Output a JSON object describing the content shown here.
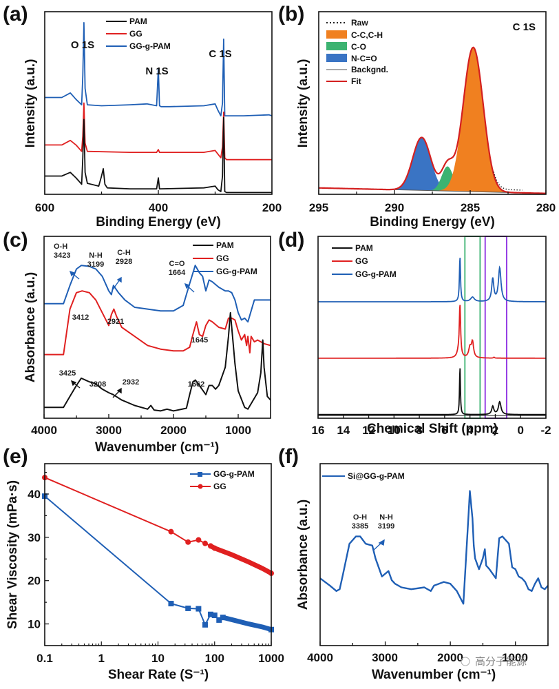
{
  "figure": {
    "watermark": "高分子能源",
    "colors": {
      "PAM": "#111111",
      "GG": "#e02020",
      "GG-g-PAM": "#1f5fb5",
      "C-C,C-H": "#f08020",
      "C-O": "#3cb371",
      "N-C=O": "#3a74c4",
      "Backgnd.": "#555555",
      "Fit": "#d42020",
      "Raw": "#222222",
      "box_green": "#3cb371",
      "box_purple": "#8a2be2"
    }
  },
  "chart_data": [
    {
      "id": "a",
      "panel_label": "(a)",
      "type": "line",
      "title": "",
      "xlabel": "Binding Energy (eV)",
      "ylabel": "Intensity (a.u.)",
      "xlim": [
        600,
        200
      ],
      "ylim": [
        0,
        10
      ],
      "xticks": [
        600,
        400,
        200
      ],
      "xtick_labels": [
        "600",
        "400",
        "200"
      ],
      "legend": [
        "PAM",
        "GG",
        "GG-g-PAM"
      ],
      "legend_position": "top-center",
      "annotations": [
        {
          "text": "O 1S",
          "x": 531
        },
        {
          "text": "N 1S",
          "x": 399
        },
        {
          "text": "C 1S",
          "x": 285
        }
      ],
      "series": [
        {
          "name": "GG-g-PAM",
          "x": [
            600,
            570,
            555,
            545,
            535,
            533,
            531,
            529,
            525,
            500,
            450,
            420,
            403,
            400,
            398,
            395,
            380,
            320,
            300,
            295,
            290,
            287,
            285,
            283,
            280,
            250,
            205,
            200
          ],
          "y": [
            5.3,
            5.3,
            5.55,
            5.2,
            4.9,
            6.5,
            9.4,
            5.8,
            4.9,
            4.85,
            4.9,
            4.95,
            4.85,
            6.9,
            4.85,
            4.8,
            4.8,
            4.85,
            4.95,
            4.6,
            4.3,
            5.0,
            8.5,
            4.3,
            4.3,
            4.3,
            4.35,
            4.3
          ]
        },
        {
          "name": "GG",
          "x": [
            600,
            570,
            555,
            545,
            535,
            533,
            531,
            529,
            525,
            450,
            403,
            400,
            398,
            320,
            300,
            295,
            290,
            287,
            285,
            283,
            280,
            200
          ],
          "y": [
            2.7,
            2.7,
            2.95,
            2.7,
            2.35,
            3.2,
            5.0,
            2.8,
            2.35,
            2.3,
            2.3,
            2.45,
            2.3,
            2.3,
            2.4,
            2.2,
            2.0,
            2.6,
            4.5,
            2.0,
            1.9,
            1.9
          ]
        },
        {
          "name": "PAM",
          "x": [
            600,
            570,
            555,
            545,
            535,
            533,
            531,
            529,
            525,
            505,
            500,
            497,
            494,
            490,
            450,
            403,
            400,
            398,
            320,
            300,
            295,
            290,
            287,
            285,
            283,
            280,
            200
          ],
          "y": [
            1.0,
            1.0,
            1.2,
            0.9,
            0.55,
            2.0,
            4.1,
            1.2,
            0.6,
            0.45,
            1.0,
            1.4,
            0.55,
            0.35,
            0.3,
            0.3,
            0.9,
            0.3,
            0.35,
            0.45,
            0.25,
            0.15,
            1.0,
            4.2,
            0.15,
            0.1,
            0.1
          ]
        }
      ]
    },
    {
      "id": "b",
      "panel_label": "(b)",
      "type": "area",
      "title": "C 1S",
      "xlabel": "Binding Energy (eV)",
      "ylabel": "Intensity (a.u.)",
      "xlim": [
        295,
        280
      ],
      "ylim": [
        0,
        10
      ],
      "xticks": [
        295,
        290,
        285,
        280
      ],
      "xtick_labels": [
        "295",
        "290",
        "285",
        "280"
      ],
      "legend": [
        "Raw",
        "C-C,C-H",
        "C-O",
        "N-C=O",
        "Backgnd.",
        "Fit"
      ],
      "legend_position": "top-left",
      "components": [
        {
          "name": "N-C=O",
          "center": 288.2,
          "height": 2.9,
          "fwhm": 1.4
        },
        {
          "name": "C-O",
          "center": 286.5,
          "height": 1.35,
          "fwhm": 0.9
        },
        {
          "name": "C-C,C-H",
          "center": 284.8,
          "height": 7.9,
          "fwhm": 1.55
        }
      ],
      "background": {
        "start": 0.35,
        "end": 0.05
      }
    },
    {
      "id": "c",
      "panel_label": "(c)",
      "type": "line",
      "title": "",
      "xlabel": "Wavenumber (cm⁻¹)",
      "ylabel": "Absorbance (a.u.)",
      "xlim": [
        4000,
        500
      ],
      "ylim": [
        0,
        10
      ],
      "xticks": [
        4000,
        3000,
        2000,
        1000
      ],
      "xtick_labels": [
        "4000",
        "3000",
        "2000",
        "1000"
      ],
      "legend": [
        "PAM",
        "GG",
        "GG-g-PAM"
      ],
      "legend_position": "top-right",
      "annotations": [
        {
          "series": "GG-g-PAM",
          "lines": [
            "O-H",
            "3423"
          ]
        },
        {
          "series": "GG-g-PAM",
          "lines": [
            "N-H",
            "3199"
          ]
        },
        {
          "series": "GG-g-PAM",
          "lines": [
            "C-H",
            "2928"
          ]
        },
        {
          "series": "GG-g-PAM",
          "lines": [
            "C=O",
            "1664"
          ]
        },
        {
          "series": "GG",
          "lines": [
            "3412"
          ]
        },
        {
          "series": "GG",
          "lines": [
            "2921"
          ]
        },
        {
          "series": "GG",
          "lines": [
            "1645"
          ]
        },
        {
          "series": "PAM",
          "lines": [
            "3425"
          ]
        },
        {
          "series": "PAM",
          "lines": [
            "3208"
          ]
        },
        {
          "series": "PAM",
          "lines": [
            "2932"
          ]
        },
        {
          "series": "PAM",
          "lines": [
            "1662"
          ]
        }
      ],
      "series": [
        {
          "name": "GG-g-PAM",
          "x": [
            4000,
            3700,
            3600,
            3500,
            3423,
            3300,
            3199,
            3100,
            3000,
            2960,
            2928,
            2850,
            2750,
            2600,
            2400,
            2200,
            2000,
            1850,
            1750,
            1664,
            1600,
            1550,
            1500,
            1450,
            1400,
            1300,
            1200,
            1150,
            1100,
            1050,
            1000,
            950,
            900,
            850,
            800,
            750,
            700,
            600,
            500
          ],
          "y": [
            6.3,
            6.3,
            7.3,
            8.2,
            8.4,
            8.35,
            8.2,
            7.8,
            7.0,
            6.8,
            7.3,
            6.9,
            6.5,
            6.1,
            6.0,
            5.9,
            5.9,
            6.2,
            7.4,
            8.4,
            8.0,
            7.8,
            7.0,
            7.6,
            7.5,
            7.2,
            7.0,
            7.0,
            6.9,
            6.5,
            5.8,
            5.4,
            5.5,
            5.3,
            5.9,
            6.5,
            6.5,
            6.5,
            6.5
          ]
        },
        {
          "name": "GG",
          "x": [
            4000,
            3700,
            3600,
            3500,
            3412,
            3300,
            3200,
            3100,
            3000,
            2960,
            2921,
            2880,
            2800,
            2600,
            2400,
            2200,
            2000,
            1850,
            1750,
            1700,
            1645,
            1600,
            1550,
            1500,
            1450,
            1400,
            1300,
            1200,
            1150,
            1100,
            1050,
            1000,
            950,
            900,
            870,
            850,
            820,
            800,
            750,
            700,
            600,
            500
          ],
          "y": [
            3.5,
            3.5,
            6.0,
            6.9,
            7.0,
            6.9,
            6.5,
            5.8,
            5.1,
            5.7,
            6.0,
            5.6,
            5.0,
            4.5,
            4.0,
            3.8,
            3.7,
            3.7,
            3.9,
            4.6,
            5.3,
            4.6,
            4.5,
            5.1,
            5.4,
            5.3,
            5.0,
            4.9,
            5.5,
            5.5,
            5.4,
            4.8,
            4.3,
            4.6,
            4.0,
            4.5,
            3.6,
            4.5,
            4.2,
            4.3,
            4.1,
            4.0
          ]
        },
        {
          "name": "PAM",
          "x": [
            4000,
            3700,
            3600,
            3500,
            3425,
            3300,
            3208,
            3100,
            3000,
            2932,
            2800,
            2600,
            2400,
            2350,
            2300,
            2200,
            2100,
            2000,
            1800,
            1750,
            1700,
            1662,
            1600,
            1500,
            1450,
            1400,
            1350,
            1300,
            1200,
            1150,
            1120,
            1100,
            1050,
            1000,
            900,
            850,
            800,
            700,
            650,
            620,
            600,
            550,
            500
          ],
          "y": [
            0.6,
            0.6,
            1.2,
            1.8,
            2.2,
            2.0,
            1.9,
            1.6,
            1.4,
            1.3,
            1.0,
            0.7,
            0.5,
            0.7,
            0.45,
            0.4,
            0.5,
            0.4,
            0.55,
            1.3,
            2.0,
            2.1,
            1.8,
            1.3,
            1.8,
            1.8,
            1.6,
            1.8,
            2.8,
            4.5,
            5.8,
            5.0,
            3.0,
            1.5,
            0.6,
            0.5,
            0.8,
            1.4,
            2.5,
            4.3,
            2.8,
            1.2,
            1.0
          ]
        }
      ]
    },
    {
      "id": "d",
      "panel_label": "(d)",
      "type": "line",
      "title": "",
      "xlabel": "Chemical Shift (ppm)",
      "ylabel": "",
      "xlim": [
        16,
        -2
      ],
      "ylim": [
        0,
        10
      ],
      "xticks": [
        16,
        14,
        12,
        10,
        8,
        6,
        4,
        2,
        0,
        -2
      ],
      "xtick_labels": [
        "16",
        "14",
        "12",
        "10",
        "8",
        "6",
        "4",
        "2",
        "0",
        "-2"
      ],
      "legend": [
        "PAM",
        "GG",
        "GG-g-PAM"
      ],
      "legend_position": "top-left",
      "highlight_boxes": [
        {
          "color": "box_green",
          "x_range": [
            4.4,
            3.2
          ]
        },
        {
          "color": "box_purple",
          "x_range": [
            2.8,
            1.1
          ]
        }
      ],
      "series": [
        {
          "name": "GG-g-PAM",
          "baseline": 6.4,
          "peaks": [
            {
              "x": 4.79,
              "h": 2.5,
              "w": 0.05
            },
            {
              "x": 3.8,
              "h": 0.25,
              "w": 0.18
            },
            {
              "x": 2.2,
              "h": 1.25,
              "w": 0.1
            },
            {
              "x": 1.65,
              "h": 1.85,
              "w": 0.12
            }
          ]
        },
        {
          "name": "GG",
          "baseline": 3.3,
          "peaks": [
            {
              "x": 4.79,
              "h": 2.8,
              "w": 0.06
            },
            {
              "x": 4.9,
              "h": 0.3,
              "w": 0.15
            },
            {
              "x": 4.0,
              "h": 0.55,
              "w": 0.12
            },
            {
              "x": 3.8,
              "h": 0.85,
              "w": 0.1
            },
            {
              "x": 2.1,
              "h": 0.05,
              "w": 0.05
            }
          ]
        },
        {
          "name": "PAM",
          "baseline": 0.2,
          "peaks": [
            {
              "x": 4.79,
              "h": 2.7,
              "w": 0.04
            },
            {
              "x": 2.2,
              "h": 0.45,
              "w": 0.1
            },
            {
              "x": 1.65,
              "h": 0.7,
              "w": 0.12
            }
          ]
        }
      ]
    },
    {
      "id": "e",
      "panel_label": "(e)",
      "type": "line",
      "title": "",
      "xlabel": "Shear Rate (S⁻¹)",
      "ylabel": "Shear Viscosity (mPa·s)",
      "xscale": "log",
      "xlim": [
        0.1,
        1000
      ],
      "ylim": [
        5,
        47
      ],
      "xticks": [
        0.1,
        1,
        10,
        100,
        1000
      ],
      "xtick_labels": [
        "0.1",
        "1",
        "10",
        "100",
        "1000"
      ],
      "yticks": [
        10,
        20,
        30,
        40
      ],
      "ytick_labels": [
        "10",
        "20",
        "30",
        "40"
      ],
      "legend": [
        "GG-g-PAM",
        "GG"
      ],
      "legend_position": "top-right",
      "series": [
        {
          "name": "GG-g-PAM",
          "x": [
            0.1,
            17,
            34,
            52,
            68,
            85,
            100,
            120,
            140,
            200,
            400,
            700,
            1000
          ],
          "y": [
            39.5,
            14.7,
            13.6,
            13.5,
            9.8,
            12.2,
            12.0,
            10.9,
            11.5,
            11.0,
            10.0,
            9.3,
            8.7
          ]
        },
        {
          "name": "GG",
          "x": [
            0.1,
            17,
            34,
            52,
            68,
            85,
            100,
            200,
            400,
            700,
            1000
          ],
          "y": [
            43.8,
            31.3,
            28.9,
            29.4,
            28.6,
            28.0,
            27.5,
            26.0,
            24.3,
            22.8,
            21.7
          ]
        }
      ]
    },
    {
      "id": "f",
      "panel_label": "(f)",
      "type": "line",
      "title": "",
      "xlabel": "Wavenumber (cm⁻¹)",
      "ylabel": "Absorbance (a.u.)",
      "xlim": [
        4000,
        500
      ],
      "ylim": [
        0,
        10
      ],
      "xticks": [
        4000,
        3000,
        2000,
        1000
      ],
      "xtick_labels": [
        "4000",
        "3000",
        "2000",
        "1000"
      ],
      "legend": [
        "Si@GG-g-PAM"
      ],
      "legend_position": "top-left",
      "annotations": [
        {
          "lines": [
            "O-H",
            "3385"
          ]
        },
        {
          "lines": [
            "N-H",
            "3199"
          ]
        }
      ],
      "series": [
        {
          "name": "Si@GG-g-PAM",
          "x": [
            4000,
            3850,
            3750,
            3700,
            3650,
            3550,
            3450,
            3385,
            3300,
            3199,
            3150,
            3050,
            2950,
            2900,
            2850,
            2750,
            2600,
            2400,
            2300,
            2250,
            2100,
            2000,
            1900,
            1800,
            1720,
            1700,
            1660,
            1640,
            1620,
            1560,
            1500,
            1470,
            1450,
            1400,
            1300,
            1250,
            1200,
            1100,
            1050,
            1000,
            950,
            900,
            850,
            800,
            750,
            700,
            650,
            600,
            550,
            500
          ],
          "y": [
            3.7,
            3.3,
            3.0,
            3.1,
            3.9,
            5.6,
            6.0,
            6.0,
            5.6,
            5.5,
            4.8,
            3.8,
            4.1,
            3.6,
            3.4,
            3.2,
            3.1,
            3.2,
            3.0,
            3.3,
            3.5,
            3.4,
            3.0,
            2.3,
            7.2,
            8.5,
            7.0,
            5.5,
            4.8,
            4.2,
            4.8,
            5.3,
            4.4,
            4.2,
            3.7,
            5.9,
            6.0,
            5.6,
            4.3,
            4.2,
            3.8,
            3.7,
            3.5,
            3.1,
            3.0,
            3.4,
            3.7,
            3.2,
            3.1,
            3.3
          ]
        }
      ]
    }
  ]
}
